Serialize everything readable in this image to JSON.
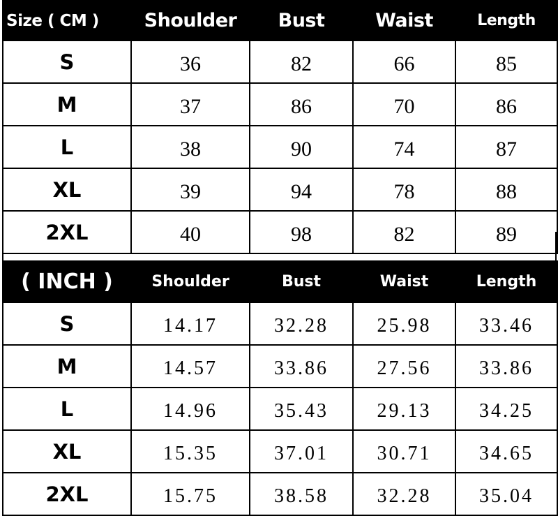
{
  "cm_table": {
    "headers": [
      "Size ( CM )",
      "Shoulder",
      "Bust",
      "Waist",
      "Length"
    ],
    "rows": [
      [
        "S",
        "36",
        "82",
        "66",
        "85"
      ],
      [
        "M",
        "37",
        "86",
        "70",
        "86"
      ],
      [
        "L",
        "38",
        "90",
        "74",
        "87"
      ],
      [
        "XL",
        "39",
        "94",
        "78",
        "88"
      ],
      [
        "2XL",
        "40",
        "98",
        "82",
        "89"
      ]
    ]
  },
  "inch_table": {
    "headers": [
      "( INCH )",
      "Shoulder",
      "Bust",
      "Waist",
      "Length"
    ],
    "rows": [
      [
        "S",
        "14.17",
        "32.28",
        "25.98",
        "33.46"
      ],
      [
        "M",
        "14.57",
        "33.86",
        "27.56",
        "33.86"
      ],
      [
        "L",
        "14.96",
        "35.43",
        "29.13",
        "34.25"
      ],
      [
        "XL",
        "15.35",
        "37.01",
        "30.71",
        "34.65"
      ],
      [
        "2XL",
        "15.75",
        "38.58",
        "32.28",
        "35.04"
      ]
    ]
  },
  "colors": {
    "header_bg": "#000000",
    "header_text": "#ffffff",
    "cell_bg": "#ffffff"
  }
}
